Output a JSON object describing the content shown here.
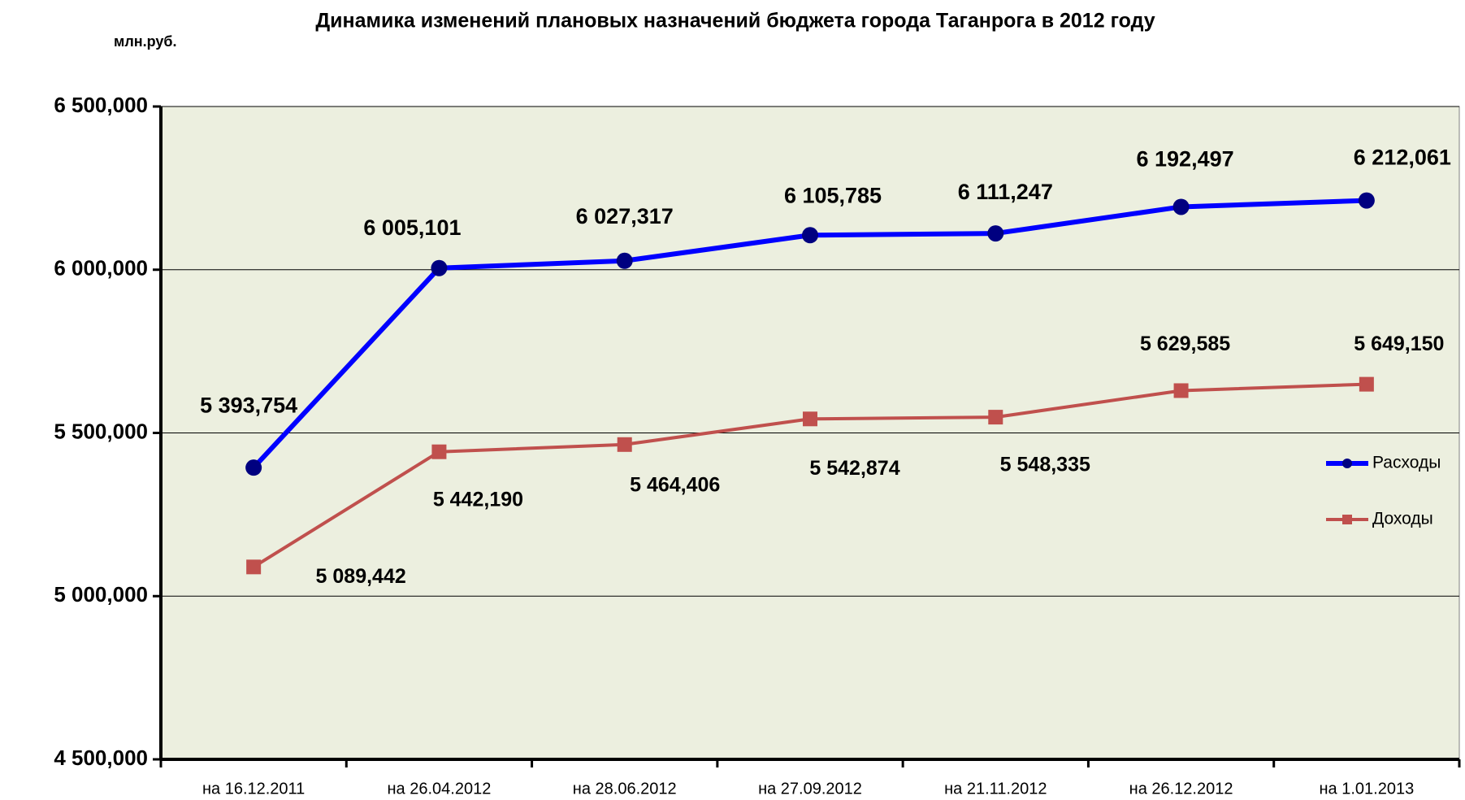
{
  "chart_data": {
    "type": "line",
    "title": "Динамика изменений плановых назначений бюджета города Таганрога  в  2012 году",
    "y_unit_label": "млн.руб.",
    "categories": [
      "на 16.12.2011",
      "на 26.04.2012",
      "на 28.06.2012",
      "на 27.09.2012",
      "на 21.11.2012",
      "на 26.12.2012",
      "на 1.01.2013"
    ],
    "series": [
      {
        "name": "Расходы",
        "color": "#0000ff",
        "marker": "circle",
        "marker_color": "#000080",
        "values": [
          5393.754,
          6005.101,
          6027.317,
          6105.785,
          6111.247,
          6192.497,
          6212.061
        ],
        "value_labels": [
          "5 393,754",
          "6 005,101",
          "6 027,317",
          "6 105,785",
          "6 111,247",
          "6 192,497",
          "6 212,061"
        ]
      },
      {
        "name": "Доходы",
        "color": "#c0504d",
        "marker": "square",
        "marker_color": "#c0504d",
        "values": [
          5089.442,
          5442.19,
          5464.406,
          5542.874,
          5548.335,
          5629.585,
          5649.15
        ],
        "value_labels": [
          "5 089,442",
          "5 442,190",
          "5 464,406",
          "5 542,874",
          "5 548,335",
          "5 629,585",
          "5 649,150"
        ]
      }
    ],
    "ylim": [
      4500,
      6500
    ],
    "yticks": [
      {
        "value": 4500,
        "label": "4 500,000"
      },
      {
        "value": 5000,
        "label": "5 000,000"
      },
      {
        "value": 5500,
        "label": "5 500,000"
      },
      {
        "value": 6000,
        "label": "6 000,000"
      },
      {
        "value": 6500,
        "label": "6 500,000"
      }
    ],
    "grid": true,
    "legend": "right"
  }
}
